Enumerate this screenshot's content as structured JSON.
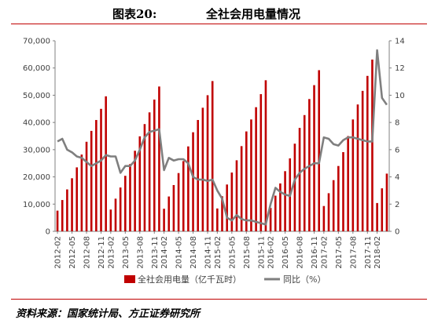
{
  "figure": {
    "number": "图表20:",
    "title": "全社会用电量情况",
    "source": "资料来源：国家统计局、方正证券研究所"
  },
  "colors": {
    "bar": "#c00000",
    "line": "#7f7f7f",
    "rule": "#c00000"
  },
  "chart_data": {
    "type": "bar",
    "secondary_type": "line",
    "x": [
      "2012-02",
      "2012-03",
      "2012-04",
      "2012-05",
      "2012-06",
      "2012-07",
      "2012-08",
      "2012-09",
      "2012-10",
      "2012-11",
      "2012-12",
      "2013-02",
      "2013-03",
      "2013-04",
      "2013-05",
      "2013-06",
      "2013-07",
      "2013-08",
      "2013-09",
      "2013-10",
      "2013-11",
      "2013-12",
      "2014-02",
      "2014-03",
      "2014-04",
      "2014-05",
      "2014-06",
      "2014-07",
      "2014-08",
      "2014-09",
      "2014-10",
      "2014-11",
      "2014-12",
      "2015-02",
      "2015-03",
      "2015-04",
      "2015-05",
      "2015-06",
      "2015-07",
      "2015-08",
      "2015-09",
      "2015-10",
      "2015-11",
      "2015-12",
      "2016-02",
      "2016-03",
      "2016-04",
      "2016-05",
      "2016-06",
      "2016-07",
      "2016-08",
      "2016-09",
      "2016-10",
      "2016-11",
      "2016-12",
      "2017-02",
      "2017-03",
      "2017-04",
      "2017-05",
      "2017-06",
      "2017-07",
      "2017-08",
      "2017-09",
      "2017-10",
      "2017-11",
      "2017-12",
      "2018-02",
      "2018-03",
      "2018-04"
    ],
    "x_tick_labels": [
      "2012-02",
      "2012-05",
      "2012-08",
      "2012-11",
      "2013-02",
      "2013-05",
      "2013-08",
      "2013-11",
      "2014-02",
      "2014-05",
      "2014-08",
      "2014-11",
      "2015-02",
      "2015-05",
      "2015-08",
      "2015-11",
      "2016-02",
      "2016-05",
      "2016-08",
      "2016-11",
      "2017-02",
      "2017-05",
      "2017-08",
      "2017-11",
      "2018-02"
    ],
    "series": [
      {
        "name": "全社会用电量（亿千瓦时）",
        "axis": "left",
        "type": "bar",
        "values": [
          7600,
          11500,
          15400,
          19500,
          23500,
          28200,
          32900,
          36900,
          40900,
          45000,
          49600,
          8000,
          12000,
          16100,
          20400,
          24700,
          29600,
          34900,
          39400,
          43700,
          48400,
          53200,
          8300,
          12800,
          17000,
          21400,
          25800,
          31200,
          36400,
          40900,
          45400,
          50000,
          55200,
          8400,
          12900,
          17200,
          21600,
          26100,
          31300,
          36700,
          41100,
          45600,
          50400,
          55500,
          8600,
          13100,
          17600,
          22100,
          26800,
          32200,
          38000,
          42700,
          48600,
          53700,
          59200,
          9300,
          14000,
          18800,
          24000,
          29100,
          35000,
          41100,
          46600,
          51600,
          57100,
          63100,
          10400,
          15800,
          21200
        ]
      },
      {
        "name": "同比（%）",
        "axis": "right",
        "type": "line",
        "values": [
          6.6,
          6.8,
          6.0,
          5.8,
          5.5,
          5.4,
          5.1,
          4.8,
          5.0,
          5.2,
          5.6,
          5.5,
          5.5,
          4.3,
          4.8,
          4.8,
          5.2,
          6.0,
          6.9,
          7.3,
          7.4,
          7.5,
          4.5,
          5.4,
          5.2,
          5.3,
          5.3,
          5.0,
          4.0,
          3.8,
          3.8,
          3.7,
          3.8,
          3.0,
          2.4,
          1.0,
          0.8,
          1.2,
          0.9,
          0.8,
          0.8,
          0.7,
          0.6,
          0.5,
          2.0,
          3.2,
          2.9,
          2.7,
          2.6,
          3.8,
          4.3,
          4.6,
          4.8,
          5.0,
          5.0,
          6.9,
          6.8,
          6.4,
          6.3,
          6.7,
          6.9,
          6.9,
          6.8,
          6.7,
          6.6,
          6.6,
          13.3,
          9.8,
          9.3
        ]
      }
    ],
    "y_left": {
      "min": 0,
      "max": 70000,
      "ticks": [
        "0",
        "10,000",
        "20,000",
        "30,000",
        "40,000",
        "50,000",
        "60,000",
        "70,000"
      ]
    },
    "y_right": {
      "min": 0,
      "max": 14,
      "ticks": [
        "0",
        "2",
        "4",
        "6",
        "8",
        "10",
        "12",
        "14"
      ]
    },
    "legend": {
      "position": "bottom"
    },
    "grid": false
  }
}
